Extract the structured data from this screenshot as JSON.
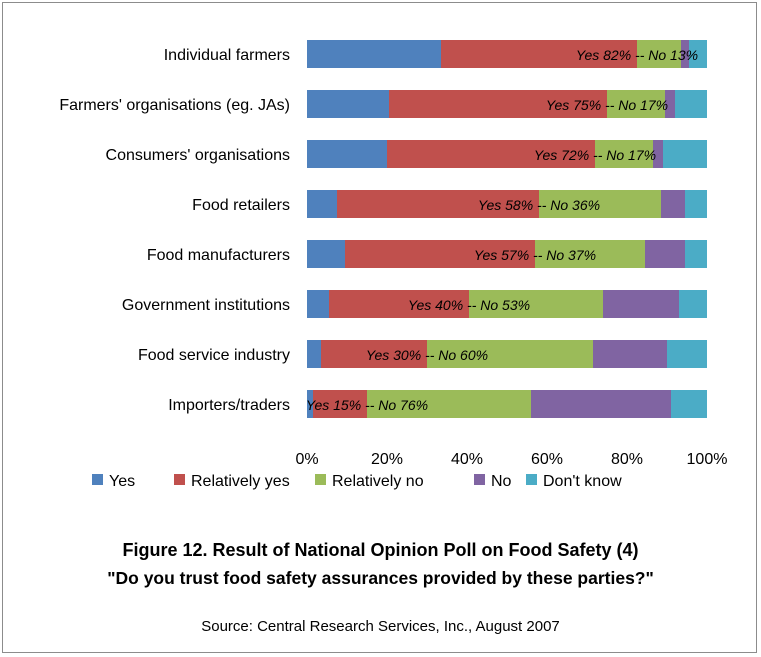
{
  "chart_data": {
    "type": "bar",
    "orientation": "horizontal",
    "stacked": "percent",
    "title": "Figure 12. Result of National Opinion Poll on Food Safety (4)",
    "subtitle": "\"Do you trust food safety assurances provided by these parties?\"",
    "source": "Source: Central Research Services, Inc., August 2007",
    "categories": [
      "Individual farmers",
      "Farmers' organisations (eg. JAs)",
      "Consumers' organisations",
      "Food retailers",
      "Food manufacturers",
      "Government institutions",
      "Food service industry",
      "Importers/traders"
    ],
    "series": [
      {
        "name": "Yes",
        "color": "#4f81bd",
        "values": [
          33.5,
          20.5,
          20,
          7.5,
          9.5,
          5.5,
          3.5,
          1.5
        ]
      },
      {
        "name": "Relatively yes",
        "color": "#c0504d",
        "values": [
          49,
          54.5,
          52,
          50.5,
          47.5,
          35,
          26.5,
          13.5
        ]
      },
      {
        "name": "Relatively no",
        "color": "#9bbb59",
        "values": [
          11,
          14.5,
          14.5,
          30.5,
          27.5,
          33.5,
          41.5,
          41
        ]
      },
      {
        "name": "No",
        "color": "#8064a2",
        "values": [
          2,
          2.5,
          2.5,
          6,
          10,
          19,
          18.5,
          35
        ]
      },
      {
        "name": "Don't know",
        "color": "#4bacc6",
        "values": [
          4.5,
          8,
          11,
          5.5,
          5.5,
          7,
          10,
          9
        ]
      }
    ],
    "annotations": [
      "Yes 82% -- No 13%",
      "Yes 75% -- No 17%",
      "Yes 72% -- No 17%",
      "Yes 58% -- No 36%",
      "Yes 57% -- No 37%",
      "Yes 40% -- No 53%",
      "Yes 30% -- No 60%",
      "Yes 15% -- No 76%"
    ],
    "xticks": [
      "0%",
      "20%",
      "40%",
      "60%",
      "80%",
      "100%"
    ],
    "xlim": [
      0,
      100
    ],
    "grid": false,
    "legend_position": "bottom"
  }
}
